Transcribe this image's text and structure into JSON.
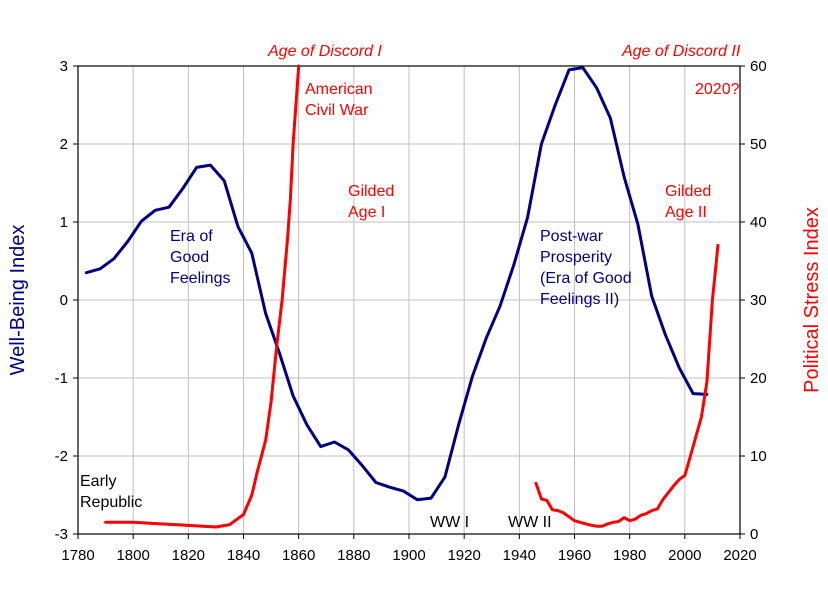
{
  "chart_data": {
    "type": "line",
    "title": "",
    "xlabel": "",
    "x_range": [
      1780,
      2020
    ],
    "x_ticks": [
      "1780",
      "1800",
      "1820",
      "1840",
      "1860",
      "1880",
      "1900",
      "1920",
      "1940",
      "1960",
      "1980",
      "2000",
      "2020"
    ],
    "y_left": {
      "label": "Well-Being Index",
      "range": [
        -3,
        3
      ],
      "ticks": [
        "3",
        "2",
        "1",
        "0",
        "-1",
        "-2",
        "-3"
      ],
      "color": "#000080"
    },
    "y_right": {
      "label": "Political Stress Index",
      "range": [
        0,
        60
      ],
      "ticks": [
        "60",
        "50",
        "40",
        "30",
        "20",
        "10",
        "0"
      ],
      "color": "#ff0000"
    },
    "grid": true,
    "series": [
      {
        "axis": "left",
        "color": "#000080",
        "x": [
          1783,
          1788,
          1793,
          1798,
          1803,
          1808,
          1813,
          1818,
          1823,
          1828,
          1833,
          1838,
          1843,
          1848,
          1853,
          1858,
          1863,
          1868,
          1873,
          1878,
          1883,
          1888,
          1893,
          1898,
          1903,
          1908,
          1913,
          1918,
          1923,
          1928,
          1933,
          1938,
          1943,
          1948,
          1953,
          1958,
          1963,
          1968,
          1973,
          1978,
          1983,
          1988,
          1993,
          1998,
          2003,
          2008
        ],
        "y": [
          0.35,
          0.4,
          0.53,
          0.75,
          1.01,
          1.15,
          1.19,
          1.43,
          1.7,
          1.73,
          1.53,
          0.94,
          0.6,
          -0.17,
          -0.68,
          -1.23,
          -1.6,
          -1.88,
          -1.82,
          -1.92,
          -2.12,
          -2.34,
          -2.4,
          -2.45,
          -2.56,
          -2.54,
          -2.27,
          -1.6,
          -0.98,
          -0.49,
          -0.08,
          0.45,
          1.06,
          2.0,
          2.5,
          2.95,
          2.98,
          2.72,
          2.33,
          1.58,
          0.97,
          0.05,
          -0.45,
          -0.87,
          -1.2,
          -1.21
        ]
      },
      {
        "axis": "right",
        "color": "#ff0000",
        "x": [
          1790,
          1800,
          1810,
          1820,
          1830,
          1835,
          1840,
          1843,
          1845,
          1848,
          1850,
          1852,
          1854,
          1856,
          1857,
          1858,
          1859,
          1860
        ],
        "y": [
          1.5,
          1.5,
          1.3,
          1.1,
          0.9,
          1.2,
          2.5,
          5,
          8,
          12,
          17,
          24,
          30,
          38,
          43,
          50,
          55,
          60
        ]
      },
      {
        "axis": "right",
        "color": "#ff0000",
        "x": [
          1946,
          1948,
          1950,
          1952,
          1954,
          1956,
          1958,
          1960,
          1962,
          1965,
          1968,
          1970,
          1972,
          1974,
          1976,
          1978,
          1980,
          1982,
          1984,
          1986,
          1988,
          1990,
          1992,
          1994,
          1996,
          1998,
          2000,
          2002,
          2004,
          2006,
          2008,
          2010,
          2011,
          2012
        ],
        "y": [
          6.5,
          4.5,
          4.3,
          3.1,
          3.0,
          2.7,
          2.2,
          1.7,
          1.5,
          1.2,
          1.0,
          1.0,
          1.3,
          1.5,
          1.6,
          2.1,
          1.7,
          1.9,
          2.4,
          2.6,
          3.0,
          3.2,
          4.4,
          5.3,
          6.2,
          7.0,
          7.5,
          10.0,
          12.5,
          15.0,
          19.5,
          30.0,
          33.5,
          37.0
        ]
      }
    ],
    "annotations": {
      "discord1": "Age of Discord I",
      "discord2": "Age of Discord II",
      "civil_war_1": "American",
      "civil_war_2": "Civil War",
      "year2020": "2020?",
      "gilded1_1": "Gilded",
      "gilded1_2": "Age I",
      "gilded2_1": "Gilded",
      "gilded2_2": "Age II",
      "era_1": "Era of",
      "era_2": "Good",
      "era_3": "Feelings",
      "postwar_1": "Post-war",
      "postwar_2": "Prosperity",
      "postwar_3": "(Era of Good",
      "postwar_4": "Feelings II)",
      "early_1": "Early",
      "early_2": "Republic",
      "ww1": "WW I",
      "ww2": "WW II"
    }
  }
}
